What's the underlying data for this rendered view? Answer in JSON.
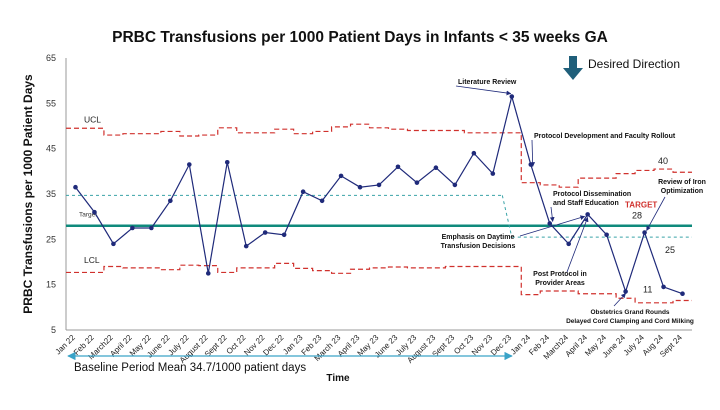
{
  "chart_data": {
    "type": "line",
    "title": "PRBC Transfusions per 1000 Patient Days in Infants < 35 weeks GA",
    "xlabel": "Time",
    "ylabel": "PRBC Transfusions per 1000 Patient Days",
    "ylim": [
      5,
      65
    ],
    "yticks": [
      5,
      15,
      25,
      35,
      45,
      55,
      65
    ],
    "grid": false,
    "categories": [
      "Jan 22",
      "Feb 22",
      "March22",
      "April 22",
      "May 22",
      "June 22",
      "July 22",
      "August 22",
      "Sept 22",
      "Oct 22",
      "Nov 22",
      "Dec 22",
      "Jan 23",
      "Feb 23",
      "March 23",
      "April 23",
      "May 23",
      "June 23",
      "July 23",
      "August 23",
      "Sept 23",
      "Oct 23",
      "Nov 23",
      "Dec 23",
      "Jan 24",
      "Feb 24",
      "March24",
      "April 24",
      "May 24",
      "June 24",
      "July 24",
      "Aug 24",
      "Sept 24"
    ],
    "series": [
      {
        "role": "rate",
        "color": "#1f2a7a",
        "values": [
          36.5,
          31,
          24,
          27.5,
          27.5,
          33.5,
          41.5,
          17.5,
          42,
          23.5,
          26.5,
          26,
          35.5,
          33.5,
          39,
          36.5,
          37,
          41,
          37.5,
          40.8,
          37,
          44,
          39.5,
          56.5,
          41.5,
          28.5,
          24,
          30.5,
          26,
          13.5,
          26.5,
          14.5,
          13
        ]
      },
      {
        "role": "ucl",
        "color": "#d0312d",
        "style": "dashed-step",
        "values": [
          49.5,
          49.5,
          48,
          48.3,
          48.3,
          48.8,
          47.8,
          48,
          49.6,
          48.5,
          48.5,
          49.3,
          48.3,
          48.8,
          49.8,
          50.4,
          49.6,
          49.3,
          49,
          49,
          49,
          48.5,
          48.5,
          48.5,
          37.5,
          37,
          36.5,
          38.5,
          38.5,
          39.5,
          40.2,
          40.5,
          39.8
        ]
      },
      {
        "role": "lcl",
        "color": "#d0312d",
        "style": "dashed-step",
        "values": [
          17.7,
          17.7,
          19,
          18.7,
          18.7,
          18.3,
          19.3,
          19.2,
          17.7,
          18.7,
          18.7,
          19.7,
          18.6,
          18.1,
          17.5,
          18.4,
          18.7,
          18.9,
          18.7,
          18.7,
          19,
          19,
          19,
          19,
          12.8,
          13.6,
          13.6,
          13,
          13,
          12,
          11,
          11,
          11.5
        ]
      }
    ],
    "lines": {
      "target": {
        "label": "Target",
        "value": 28,
        "color": "#0f8a7c"
      },
      "baseline_mean": {
        "value": 34.7,
        "color": "#3aa3a8",
        "style": "dashed"
      },
      "new_mean": {
        "value": 25.5,
        "color": "#3aa3a8",
        "style": "dashed"
      }
    },
    "labels": {
      "ucl": "UCL",
      "lcl": "LCL",
      "target_label": "TARGET",
      "desired_direction": "Desired Direction",
      "baseline_period": "Baseline Period Mean 34.7/1000 patient days",
      "num_40": "40",
      "num_28": "28",
      "num_25": "25",
      "num_11": "11"
    },
    "annotations": [
      {
        "lines": [
          "Literature Review"
        ],
        "point": 23
      },
      {
        "lines": [
          "Protocol Development and Faculty Rollout"
        ],
        "point": 24
      },
      {
        "lines": [
          "Protocol Dissemination",
          "and Staff Education"
        ],
        "point": 25
      },
      {
        "lines": [
          "Emphasis on Daytime",
          "Transfusion Decisions"
        ],
        "point": 26
      },
      {
        "lines": [
          "Post Protocol in",
          "Provider Areas"
        ],
        "point": 28
      },
      {
        "lines": [
          "Obstetrics Grand Rounds",
          "Delayed Cord Clamping and Cord Milking"
        ],
        "point": 29
      },
      {
        "lines": [
          "Review of Iron",
          "Optimization"
        ],
        "point": 30
      }
    ]
  }
}
